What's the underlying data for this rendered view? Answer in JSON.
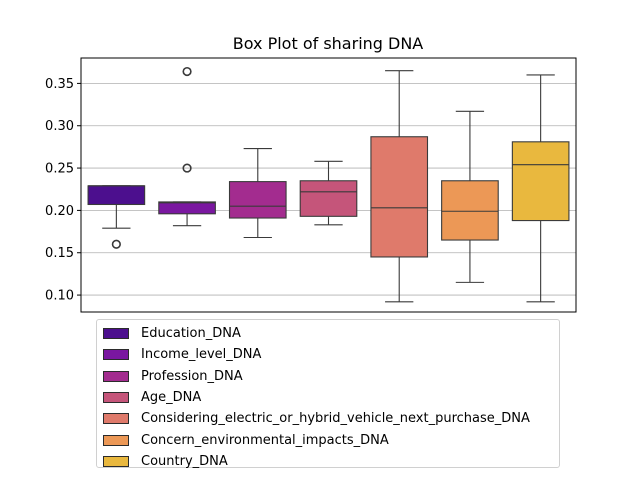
{
  "chart_data": {
    "type": "box",
    "title": "Box Plot of sharing DNA",
    "xlabel": "",
    "ylabel": "",
    "ylim": [
      0.08,
      0.38
    ],
    "yticks": [
      "0.10",
      "0.15",
      "0.20",
      "0.25",
      "0.30",
      "0.35"
    ],
    "grid": "horizontal",
    "legend_position": "below",
    "series": [
      {
        "name": "Education_DNA",
        "color": "#4c0f8e",
        "whisker_low": 0.179,
        "q1": 0.207,
        "median": 0.229,
        "q3": 0.229,
        "whisker_high": 0.229,
        "outliers": [
          0.16
        ]
      },
      {
        "name": "Income_level_DNA",
        "color": "#7a17a0",
        "whisker_low": 0.182,
        "q1": 0.196,
        "median": 0.209,
        "q3": 0.21,
        "whisker_high": 0.21,
        "outliers": [
          0.25,
          0.364
        ]
      },
      {
        "name": "Profession_DNA",
        "color": "#a32c8f",
        "whisker_low": 0.168,
        "q1": 0.191,
        "median": 0.205,
        "q3": 0.234,
        "whisker_high": 0.273,
        "outliers": []
      },
      {
        "name": "Age_DNA",
        "color": "#c5557a",
        "whisker_low": 0.183,
        "q1": 0.193,
        "median": 0.222,
        "q3": 0.235,
        "whisker_high": 0.258,
        "outliers": []
      },
      {
        "name": "Considering_electric_or_hybrid_vehicle_next_purchase_DNA",
        "color": "#df7a6b",
        "whisker_low": 0.092,
        "q1": 0.145,
        "median": 0.203,
        "q3": 0.287,
        "whisker_high": 0.365,
        "outliers": []
      },
      {
        "name": "Concern_environmental_impacts_DNA",
        "color": "#ec9856",
        "whisker_low": 0.115,
        "q1": 0.165,
        "median": 0.199,
        "q3": 0.235,
        "whisker_high": 0.317,
        "outliers": []
      },
      {
        "name": "Country_DNA",
        "color": "#e9b83e",
        "whisker_low": 0.092,
        "q1": 0.188,
        "median": 0.254,
        "q3": 0.281,
        "whisker_high": 0.36,
        "outliers": []
      }
    ]
  }
}
